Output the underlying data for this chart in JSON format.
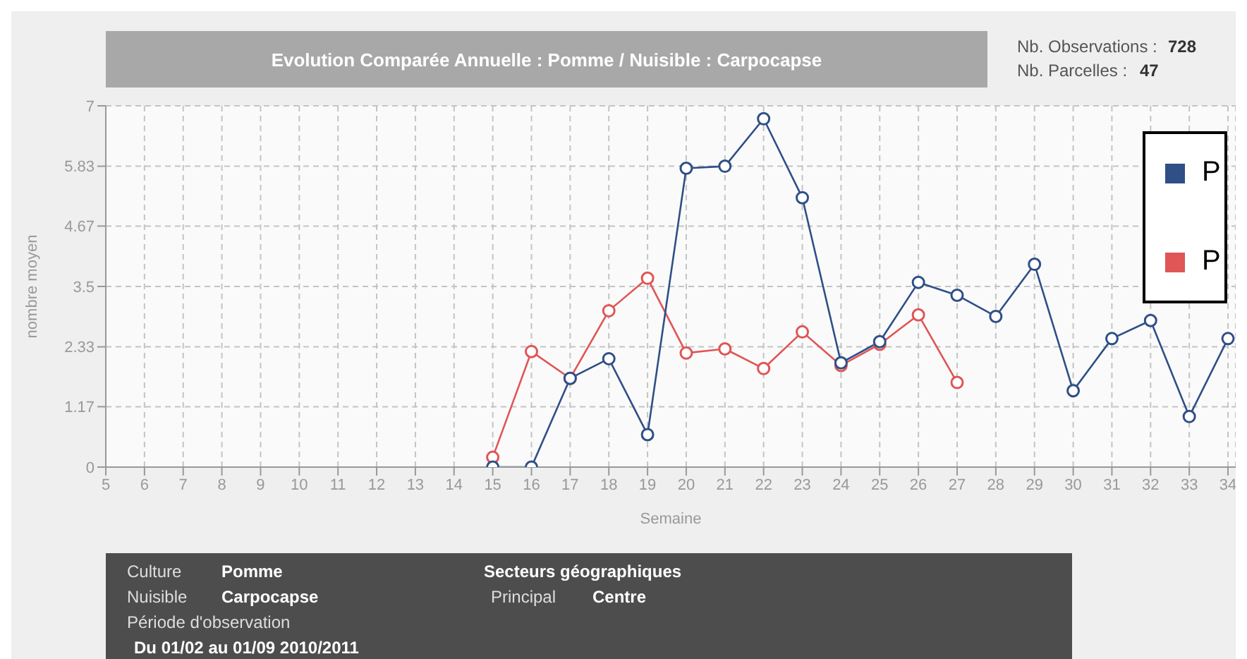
{
  "chart_data": {
    "type": "line",
    "title": "Evolution Comparée Annuelle : Pomme / Nuisible : Carpocapse",
    "xlabel": "Semaine",
    "ylabel": "nombre moyen",
    "x": [
      15,
      16,
      17,
      18,
      19,
      20,
      21,
      22,
      23,
      24,
      25,
      26,
      27,
      28,
      29,
      30,
      31,
      32,
      33,
      34
    ],
    "series": [
      {
        "name": "P",
        "color": "#2f4f86",
        "values": [
          0,
          0,
          1.72,
          2.1,
          0.63,
          5.79,
          5.83,
          6.75,
          5.22,
          2.02,
          2.43,
          3.58,
          3.33,
          2.92,
          3.93,
          1.48,
          2.49,
          2.84,
          0.98,
          2.49
        ]
      },
      {
        "name": "P",
        "color": "#e05555",
        "values": [
          0.19,
          2.24,
          1.72,
          3.03,
          3.66,
          2.21,
          2.29,
          1.91,
          2.62,
          1.97,
          2.38,
          2.95,
          1.64,
          null,
          null,
          null,
          null,
          null,
          null,
          null
        ]
      }
    ],
    "xlim": [
      5,
      34.2
    ],
    "xticks": [
      5,
      6,
      7,
      8,
      9,
      10,
      11,
      12,
      13,
      14,
      15,
      16,
      17,
      18,
      19,
      20,
      21,
      22,
      23,
      24,
      25,
      26,
      27,
      28,
      29,
      30,
      31,
      32,
      33,
      34
    ],
    "ylim": [
      0,
      7
    ],
    "yticks": [
      0,
      1.17,
      2.33,
      3.5,
      4.67,
      5.83,
      7
    ],
    "grid": true,
    "legend": "top right",
    "marker": "circle",
    "line_style": "solid",
    "annotations": [
      "Nb. Observations :",
      "728",
      "Nb. Parcelles :",
      "47",
      "Culture",
      "Pomme",
      "Nuisible",
      "Carpocapse",
      "Période d'observation",
      "Du 01/02 au 01/09 2010/2011",
      "Secteurs géographiques",
      "Principal",
      "Centre"
    ]
  }
}
